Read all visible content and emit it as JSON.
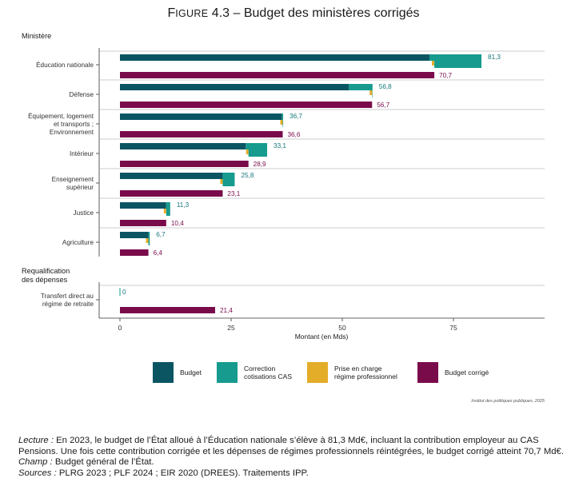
{
  "title": {
    "figure_word": "Figure",
    "number": "4.3",
    "separator": "–",
    "text": "Budget des ministères corrigés"
  },
  "chart_data": {
    "type": "bar",
    "orientation": "horizontal",
    "stacked_top_bar": true,
    "ylabel": "Ministère",
    "xlabel": "Montant (en Mds)",
    "xlim": [
      0,
      95
    ],
    "xticks": [
      0,
      25,
      50,
      75
    ],
    "groups": [
      {
        "name": "Ministère",
        "categories": [
          {
            "label": [
              "Éducation nationale"
            ],
            "budget": 69.6,
            "correction_cas": 11.7,
            "prise_en_charge": 0.0,
            "total_label": "81,3",
            "corrige": 70.7,
            "corrige_label": "70,7",
            "diamond_at": 70.7
          },
          {
            "label": [
              "Défense"
            ],
            "budget": 51.5,
            "correction_cas": 5.3,
            "prise_en_charge": 0.0,
            "total_label": "56,8",
            "corrige": 56.7,
            "corrige_label": "56,7",
            "diamond_at": 56.7
          },
          {
            "label": [
              "Équipement, logement",
              "et transports ;",
              "Environnement"
            ],
            "budget": 36.4,
            "correction_cas": 0.3,
            "prise_en_charge": 0.0,
            "total_label": "36,7",
            "corrige": 36.6,
            "corrige_label": "36,6",
            "diamond_at": 36.6
          },
          {
            "label": [
              "Intérieur"
            ],
            "budget": 28.3,
            "correction_cas": 4.8,
            "prise_en_charge": 0.0,
            "total_label": "33,1",
            "corrige": 28.9,
            "corrige_label": "28,9",
            "diamond_at": 28.9
          },
          {
            "label": [
              "Enseignement",
              "supérieur"
            ],
            "budget": 23.1,
            "correction_cas": 2.7,
            "prise_en_charge": 0.0,
            "total_label": "25,8",
            "corrige": 23.1,
            "corrige_label": "23,1",
            "diamond_at": 23.1
          },
          {
            "label": [
              "Justice"
            ],
            "budget": 10.4,
            "correction_cas": 0.9,
            "prise_en_charge": 0.0,
            "total_label": "11,3",
            "corrige": 10.4,
            "corrige_label": "10,4",
            "diamond_at": 10.4
          },
          {
            "label": [
              "Agriculture"
            ],
            "budget": 6.4,
            "correction_cas": 0.3,
            "prise_en_charge": 0.0,
            "total_label": "6,7",
            "corrige": 6.4,
            "corrige_label": "6,4",
            "diamond_at": 6.4
          }
        ]
      },
      {
        "name": "Requalification des dépenses",
        "name_lines": [
          "Requalification",
          "des dépenses"
        ],
        "categories": [
          {
            "label": [
              "Transfert direct au",
              "régime de retraite"
            ],
            "budget": 0,
            "correction_cas": 0,
            "prise_en_charge": 0,
            "total_label": "0",
            "corrige": 21.4,
            "corrige_label": "21,4",
            "diamond_at": null
          }
        ]
      }
    ],
    "legend": {
      "placement": "bottom",
      "entries": [
        {
          "key": "budget",
          "lines": [
            "Budget"
          ],
          "color": "#0b5563"
        },
        {
          "key": "correction_cas",
          "lines": [
            "Correction",
            "cotisations CAS"
          ],
          "color": "#169b8e"
        },
        {
          "key": "prise_en_charge",
          "lines": [
            "Prise en charge",
            "régime professionnel"
          ],
          "color": "#e3ac29"
        },
        {
          "key": "corrige",
          "lines": [
            "Budget corrigé"
          ],
          "color": "#7a0b4b"
        }
      ]
    },
    "label_colors": {
      "top": "#16777d",
      "bottom": "#7a0b4b"
    },
    "credit": "Institut des politiques publiques, 2025"
  },
  "notes": {
    "lecture_label": "Lecture :",
    "lecture_text": " En 2023, le budget de l’État alloué à l’Éducation nationale s’élève à 81,3 Md€, incluant la contribution employeur au CAS Pensions. Une fois cette contribution corrigée et les dépenses de régimes professionnels réintégrées, le budget corrigé atteint 70,7 Md€.",
    "champ_label": "Champ :",
    "champ_text": " Budget général de l’État.",
    "sources_label": "Sources :",
    "sources_text": " PLRG 2023 ; PLF 2024 ; EIR 2020 (DREES). Traitements IPP."
  }
}
